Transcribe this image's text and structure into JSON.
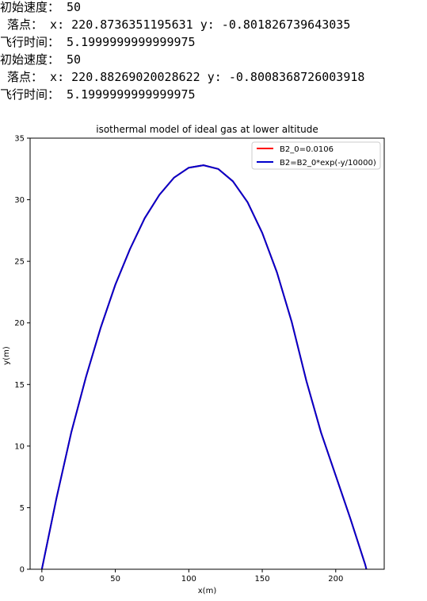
{
  "console": {
    "lines": [
      "初始速度： 50",
      " 落点： x: 220.8736351195631 y: -0.801826739643035",
      "飞行时间： 5.1999999999999975",
      "初始速度： 50",
      " 落点： x: 220.88269020028622 y: -0.8008368726003918",
      "飞行时间： 5.1999999999999975"
    ]
  },
  "chart_data": {
    "type": "line",
    "title": "isothermal model of ideal gas at lower altitude",
    "xlabel": "x(m)",
    "ylabel": "y(m)",
    "xlim": [
      -8,
      233
    ],
    "ylim": [
      0,
      35
    ],
    "xticks": [
      "0",
      "50",
      "100",
      "150",
      "200"
    ],
    "yticks": [
      "0",
      "5",
      "10",
      "15",
      "20",
      "25",
      "30",
      "35"
    ],
    "legend_position": "top-right",
    "grid": false,
    "series": [
      {
        "name": "B2_0=0.0106",
        "color": "#ff0000",
        "x": [
          0,
          10,
          20,
          30,
          40,
          50,
          60,
          70,
          80,
          90,
          100,
          110,
          120,
          130,
          140,
          150,
          160,
          170,
          180,
          190,
          200,
          210,
          220,
          220.87
        ],
        "y": [
          0,
          5.8,
          11.1,
          15.6,
          19.6,
          23.1,
          26.0,
          28.5,
          30.4,
          31.8,
          32.6,
          32.8,
          32.5,
          31.5,
          29.8,
          27.3,
          24.1,
          20.1,
          15.3,
          11.1,
          7.6,
          4.1,
          0.4,
          0
        ]
      },
      {
        "name": "B2=B2_0*exp(-y/10000)",
        "color": "#0000cc",
        "x": [
          0,
          10,
          20,
          30,
          40,
          50,
          60,
          70,
          80,
          90,
          100,
          110,
          120,
          130,
          140,
          150,
          160,
          170,
          180,
          190,
          200,
          210,
          220,
          220.88
        ],
        "y": [
          0,
          5.8,
          11.1,
          15.6,
          19.6,
          23.1,
          26.0,
          28.5,
          30.4,
          31.8,
          32.6,
          32.8,
          32.5,
          31.5,
          29.8,
          27.3,
          24.1,
          20.1,
          15.3,
          11.1,
          7.6,
          4.1,
          0.4,
          0
        ]
      }
    ]
  }
}
